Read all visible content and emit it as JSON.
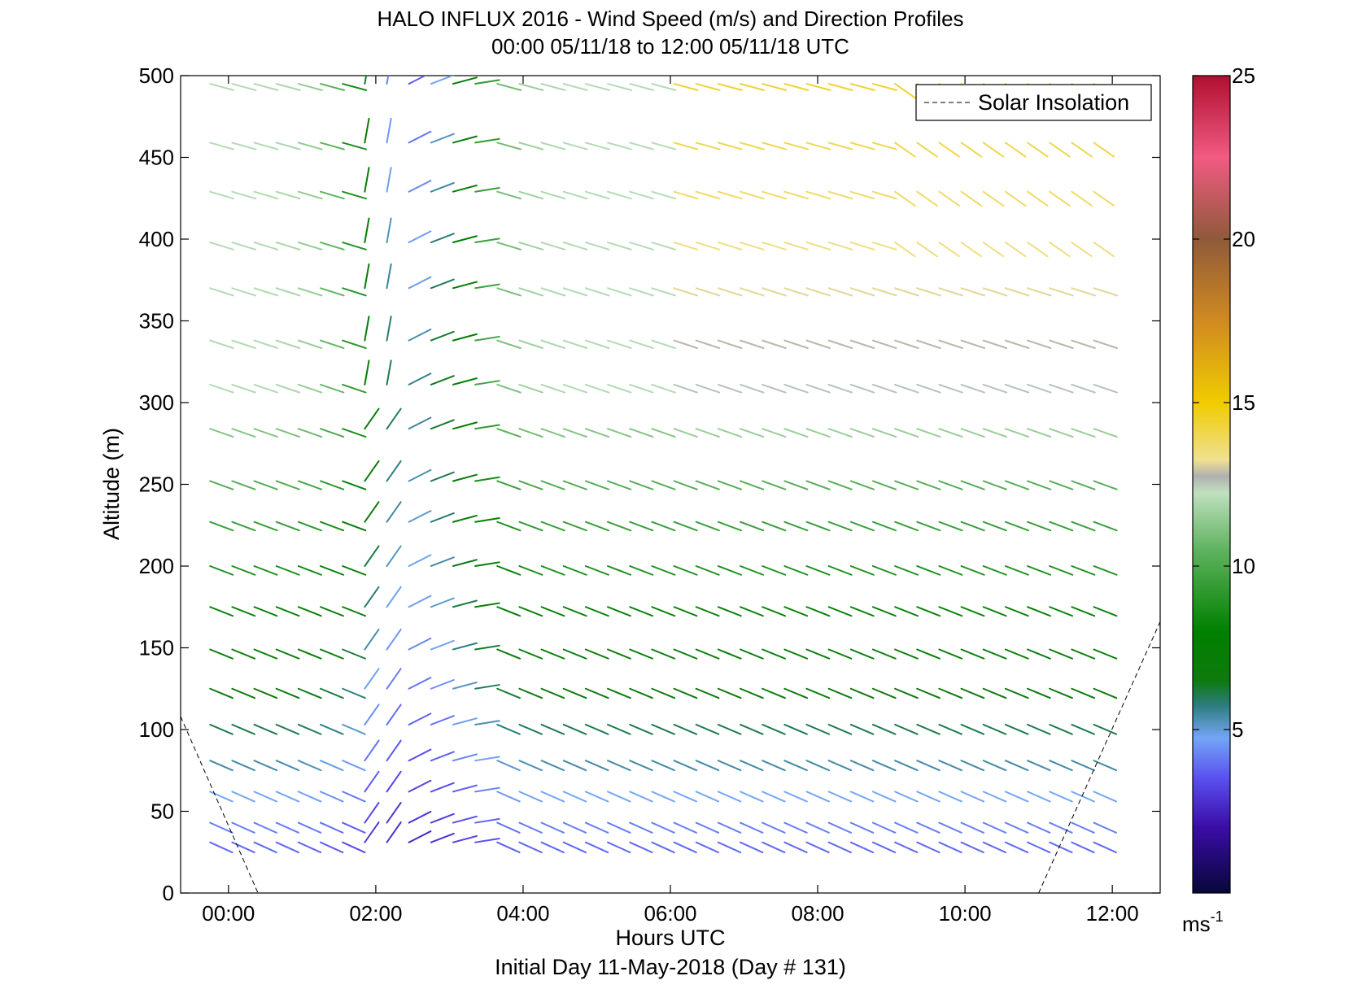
{
  "chart_data": {
    "type": "quiver",
    "title_line1": "HALO INFLUX 2016 - Wind Speed (m/s) and Direction Profiles",
    "title_line2": "00:00 05/11/18 to 12:00 05/11/18  UTC",
    "xlabel": "Hours UTC",
    "xlabel2": "Initial Day 11-May-2018 (Day # 131)",
    "ylabel": "Altitude (m)",
    "xlim": [
      -0.65,
      12.65
    ],
    "ylim": [
      0,
      500
    ],
    "xticks": [
      0,
      2,
      4,
      6,
      8,
      10,
      12
    ],
    "xtick_labels": [
      "00:00",
      "02:00",
      "04:00",
      "06:00",
      "08:00",
      "10:00",
      "12:00"
    ],
    "yticks": [
      0,
      50,
      100,
      150,
      200,
      250,
      300,
      350,
      400,
      450,
      500
    ],
    "ytick_labels": [
      "0",
      "50",
      "100",
      "150",
      "200",
      "250",
      "300",
      "350",
      "400",
      "450",
      "500"
    ],
    "grid": false,
    "legend": {
      "entries": [
        "Solar Insolation"
      ],
      "placement": "top-right",
      "style": "dashed"
    },
    "colorbar": {
      "min": 0,
      "max": 25,
      "ticks": [
        5,
        10,
        15,
        20,
        25
      ],
      "tick_labels": [
        "5",
        "10",
        "15",
        "20",
        "25"
      ],
      "unit_label": "ms",
      "unit_exponent": "-1"
    },
    "solar_insolation": [
      {
        "x": [
          -0.65,
          0.4
        ],
        "y": [
          108,
          0
        ]
      },
      {
        "x": [
          11.0,
          12.65
        ],
        "y": [
          0,
          166
        ]
      }
    ],
    "altitudes": [
      31,
      43,
      62,
      81,
      103,
      125,
      149,
      175,
      200,
      227,
      252,
      284,
      311,
      338,
      370,
      398,
      429,
      459,
      495
    ],
    "speed_samples": [
      [
        3,
        3,
        3,
        2,
        2,
        2,
        3,
        3,
        3,
        3,
        3,
        3,
        3,
        3,
        3,
        3,
        3,
        3,
        3
      ],
      [
        4,
        5,
        6,
        6,
        6,
        7,
        8,
        9,
        10,
        10,
        10,
        11,
        11,
        11,
        11,
        11,
        11,
        11,
        10
      ],
      [
        3,
        4,
        4,
        5,
        6,
        7,
        8,
        9,
        10,
        11,
        11,
        12,
        13,
        13,
        13,
        12,
        12,
        12,
        13
      ],
      [
        3,
        4,
        4,
        5,
        6,
        7,
        8,
        9,
        10,
        11,
        11,
        12,
        12,
        12,
        12,
        11,
        11,
        11,
        11
      ],
      [
        3,
        3,
        4,
        5,
        6,
        7,
        8,
        9,
        10,
        11,
        11,
        12,
        13,
        13,
        15,
        14,
        15,
        15,
        14
      ]
    ],
    "vectors_note": "wind barbs per profile time (columns) and altitude; speed in m/s, direction in degrees"
  }
}
